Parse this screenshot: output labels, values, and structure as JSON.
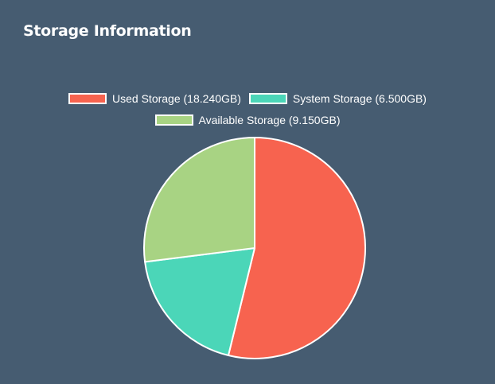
{
  "panel": {
    "title": "Storage Information"
  },
  "chart_data": {
    "type": "pie",
    "title": "",
    "slices": [
      {
        "label": "Used Storage (18.240GB)",
        "value": 18.24,
        "color": "#f7634f"
      },
      {
        "label": "System Storage (6.500GB)",
        "value": 6.5,
        "color": "#4bd6b8"
      },
      {
        "label": "Available Storage (9.150GB)",
        "value": 9.15,
        "color": "#a8d383"
      }
    ],
    "legend_position": "top",
    "start_angle": "12 o'clock",
    "direction": "clockwise",
    "border_color": "#ffffff"
  }
}
